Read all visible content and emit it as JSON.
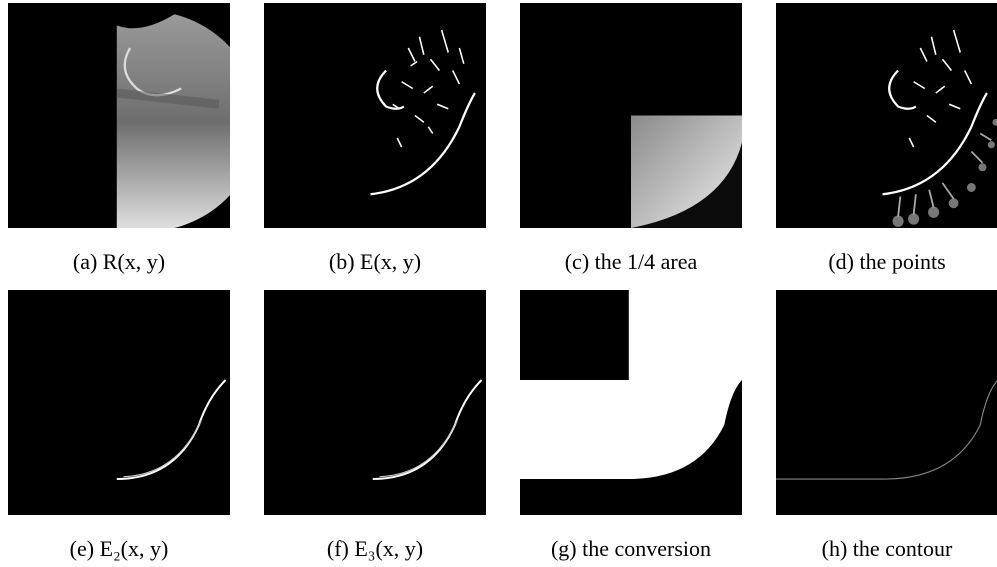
{
  "figure": {
    "panels": [
      {
        "caption": "(a) R(x, y)"
      },
      {
        "caption": "(b) E(x, y)"
      },
      {
        "caption": "(c) the 1/4 area"
      },
      {
        "caption": "(d) the points"
      },
      {
        "caption": "(e) E₂(x, y)"
      },
      {
        "caption": "(f) E₃(x, y)"
      },
      {
        "caption": "(g) the conversion"
      },
      {
        "caption": "(h) the contour"
      }
    ]
  }
}
